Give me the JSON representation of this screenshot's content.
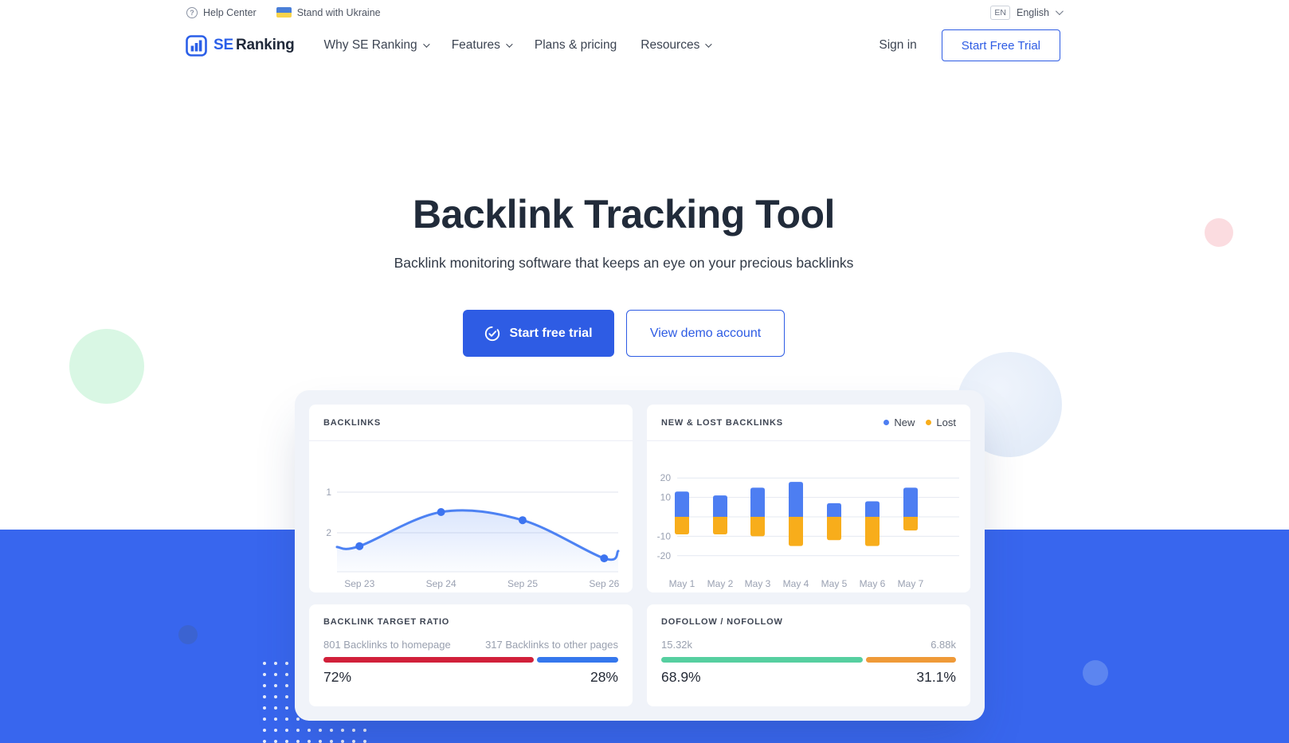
{
  "topbar": {
    "help_label": "Help Center",
    "ukraine_label": "Stand with Ukraine",
    "lang_code": "EN",
    "lang_name": "English"
  },
  "nav": {
    "brand_se": "SE",
    "brand_ranking": "Ranking",
    "items": [
      {
        "label": "Why SE Ranking",
        "dropdown": true
      },
      {
        "label": "Features",
        "dropdown": true
      },
      {
        "label": "Plans & pricing",
        "dropdown": false
      },
      {
        "label": "Resources",
        "dropdown": true
      }
    ],
    "signin_label": "Sign in",
    "cta_label": "Start Free Trial"
  },
  "hero": {
    "title": "Backlink Tracking Tool",
    "subtitle": "Backlink monitoring software that keeps an eye on your precious backlinks",
    "primary_cta": "Start free trial",
    "secondary_cta": "View demo account"
  },
  "colors": {
    "brand_blue": "#2e5ce4",
    "section_blue": "#3866ee"
  },
  "chart_data": [
    {
      "type": "line",
      "title": "BACKLINKS",
      "x": [
        "Sep 23",
        "Sep 24",
        "Sep 25",
        "Sep 26"
      ],
      "values": [
        2.33,
        1.49,
        1.69,
        2.63
      ],
      "edge_start": 2.35,
      "edge_end": 2.45,
      "y_ticks": [
        "1",
        "2"
      ],
      "y_inverted": true,
      "grid": true,
      "line_color": "#4d82f3",
      "dot_color": "#3d74f0"
    },
    {
      "type": "bar",
      "title": "NEW & LOST BACKLINKS",
      "categories": [
        "May 1",
        "May 2",
        "May 3",
        "May 4",
        "May 5",
        "May 6",
        "May 7"
      ],
      "series": [
        {
          "name": "New",
          "color": "#4d7ef2",
          "values": [
            13,
            11,
            15,
            18,
            7,
            8,
            15
          ]
        },
        {
          "name": "Lost",
          "color": "#f8ad1b",
          "values": [
            -9,
            -9,
            -10,
            -15,
            -12,
            -15,
            -7
          ]
        }
      ],
      "y_ticks": [
        20,
        10,
        -10,
        -20
      ],
      "ylim": [
        -20,
        20
      ],
      "grid": true,
      "legend_position": "top-right"
    },
    {
      "type": "progress",
      "title": "BACKLINK TARGET RATIO",
      "left": {
        "label": "801 Backlinks to homepage",
        "percent": "72%",
        "value": 72,
        "color": "#d1203a"
      },
      "right": {
        "label": "317 Backlinks to other pages",
        "percent": "28%",
        "value": 28,
        "color": "#3577ed"
      }
    },
    {
      "type": "progress",
      "title": "DOFOLLOW / NOFOLLOW",
      "left": {
        "label": "15.32k",
        "percent": "68.9%",
        "value": 68.9,
        "color": "#56cfa0"
      },
      "right": {
        "label": "6.88k",
        "percent": "31.1%",
        "value": 31.1,
        "color": "#ef9a38"
      }
    }
  ]
}
